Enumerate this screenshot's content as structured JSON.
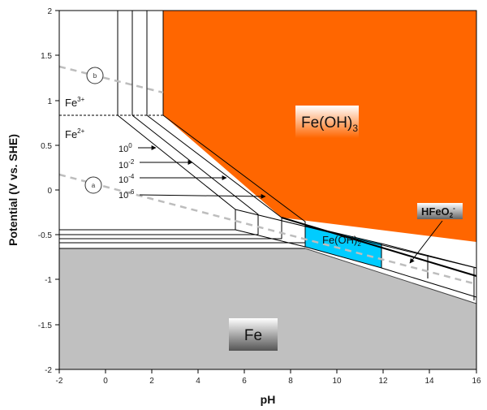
{
  "axes": {
    "x_title": "pH",
    "y_title": "Potential (V vs. SHE)",
    "x_ticks": [
      "-2",
      "0",
      "2",
      "4",
      "6",
      "8",
      "10",
      "12",
      "14",
      "16"
    ],
    "y_ticks": [
      "2",
      "1.5",
      "1",
      "0.5",
      "0",
      "-0.5",
      "-1",
      "-1.5",
      "-2"
    ]
  },
  "regions": {
    "fe3": {
      "base": "Fe",
      "sup": "3+"
    },
    "fe2": {
      "base": "Fe",
      "sup": "2+"
    },
    "feoh3": {
      "base": "Fe(OH)",
      "sub": "3"
    },
    "feoh2": {
      "base": "Fe(OH)",
      "sub": "2"
    },
    "hfeo2": {
      "base": "HFeO",
      "sub": "2",
      "sup": "-"
    },
    "fe": {
      "text": "Fe"
    }
  },
  "concentrations": [
    {
      "base": "10",
      "exp": "0"
    },
    {
      "base": "10",
      "exp": "-2"
    },
    {
      "base": "10",
      "exp": "-4"
    },
    {
      "base": "10",
      "exp": "-6"
    }
  ],
  "water_lines": {
    "a": "a",
    "b": "b"
  },
  "colors": {
    "feoh3": "#ff6600",
    "feoh2": "#00ccff",
    "fe": "#c0c0c0",
    "water": "#c0c0c0"
  },
  "chart_data": {
    "type": "diagram",
    "xlim": [
      -2,
      16
    ],
    "ylim": [
      -2,
      2
    ],
    "water_line_a": {
      "x": [
        -2,
        16
      ],
      "y": [
        0.15,
        -0.95
      ]
    },
    "water_line_b": {
      "x": [
        -2,
        2.5
      ],
      "y": [
        1.35,
        1.05
      ]
    },
    "fe3_fe2_boundary": {
      "x": [
        -2,
        2.4
      ],
      "y": [
        0.82,
        0.82
      ]
    }
  }
}
